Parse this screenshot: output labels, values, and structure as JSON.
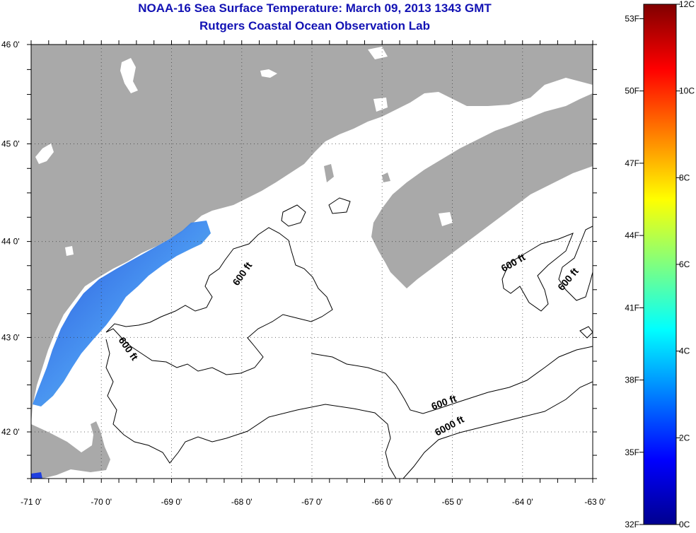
{
  "header": {
    "title": "NOAA-16 Sea Surface Temperature:  March 09, 2013 1343 GMT",
    "subtitle": "Rutgers Coastal Ocean Observation Lab"
  },
  "map": {
    "lat_labels": [
      "46 0'",
      "45 0'",
      "44 0'",
      "43 0'",
      "42 0'"
    ],
    "lon_labels": [
      "-71 0'",
      "-70 0'",
      "-69 0'",
      "-68 0'",
      "-67 0'",
      "-66 0'",
      "-65 0'",
      "-64 0'",
      "-63 0'"
    ],
    "lat_range": [
      41.5,
      46.0
    ],
    "lon_range": [
      -71.0,
      -63.0
    ],
    "contour_labels": [
      "600 ft",
      "600 ft",
      "600 ft",
      "600 ft",
      "600 ft",
      "6000 ft"
    ],
    "colors": {
      "land": "#a9a9a9",
      "ocean_no_data": "#ffffff",
      "sst_cold": "#1f57e8",
      "sst_warm": "#5fc9c0",
      "contour": "#000000",
      "title": "#1212b4"
    }
  },
  "colorbar": {
    "f_labels": [
      "53F",
      "50F",
      "47F",
      "44F",
      "41F",
      "38F",
      "35F",
      "32F"
    ],
    "c_labels": [
      "12C",
      "10C",
      "8C",
      "6C",
      "4C",
      "2C",
      "0C"
    ],
    "range_c": [
      0,
      12
    ],
    "palette": "jet"
  }
}
